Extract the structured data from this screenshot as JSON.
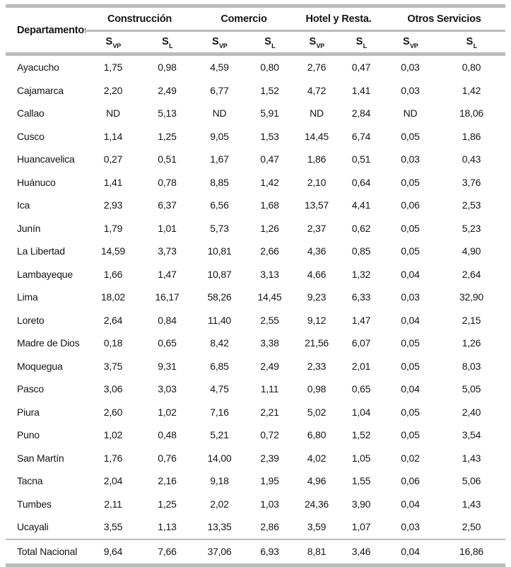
{
  "colors": {
    "rule": "#b9bbbd",
    "text": "#151515"
  },
  "table": {
    "row_header": "Departamentos",
    "groups": [
      "Construcción",
      "Comercio",
      "Hotel y Resta.",
      "Otros Servicios"
    ],
    "sub_headers": {
      "base": "S",
      "vp": "VP",
      "l": "L"
    },
    "na_value": "ND",
    "rows": [
      [
        "Ayacucho",
        "1,75",
        "0,98",
        "4,59",
        "0,80",
        "2,76",
        "0,47",
        "0,03",
        "0,80"
      ],
      [
        "Cajamarca",
        "2,20",
        "2,49",
        "6,77",
        "1,52",
        "4,72",
        "1,41",
        "0,03",
        "1,42"
      ],
      [
        "Callao",
        "ND",
        "5,13",
        "ND",
        "5,91",
        "ND",
        "2,84",
        "ND",
        "18,06"
      ],
      [
        "Cusco",
        "1,14",
        "1,25",
        "9,05",
        "1,53",
        "14,45",
        "6,74",
        "0,05",
        "1,86"
      ],
      [
        "Huancavelica",
        "0,27",
        "0,51",
        "1,67",
        "0,47",
        "1,86",
        "0,51",
        "0,03",
        "0,43"
      ],
      [
        "Huánuco",
        "1,41",
        "0,78",
        "8,85",
        "1,42",
        "2,10",
        "0,64",
        "0,05",
        "3,76"
      ],
      [
        "Ica",
        "2,93",
        "6,37",
        "6,56",
        "1,68",
        "13,57",
        "4,41",
        "0,06",
        "2,53"
      ],
      [
        "Junín",
        "1,79",
        "1,01",
        "5,73",
        "1,26",
        "2,37",
        "0,62",
        "0,05",
        "5,23"
      ],
      [
        "La Libertad",
        "14,59",
        "3,73",
        "10,81",
        "2,66",
        "4,36",
        "0,85",
        "0,05",
        "4,90"
      ],
      [
        "Lambayeque",
        "1,66",
        "1,47",
        "10,87",
        "3,13",
        "4,66",
        "1,32",
        "0,04",
        "2,64"
      ],
      [
        "Lima",
        "18,02",
        "16,17",
        "58,26",
        "14,45",
        "9,23",
        "6,33",
        "0,03",
        "32,90"
      ],
      [
        "Loreto",
        "2,64",
        "0,84",
        "11,40",
        "2,55",
        "9,12",
        "1,47",
        "0,04",
        "2,15"
      ],
      [
        "Madre de Dios",
        "0,18",
        "0,65",
        "8,42",
        "3,38",
        "21,56",
        "6,07",
        "0,05",
        "1,26"
      ],
      [
        "Moquegua",
        "3,75",
        "9,31",
        "6,85",
        "2,49",
        "2,33",
        "2,01",
        "0,05",
        "8,03"
      ],
      [
        "Pasco",
        "3,06",
        "3,03",
        "4,75",
        "1,11",
        "0,98",
        "0,65",
        "0,04",
        "5,05"
      ],
      [
        "Piura",
        "2,60",
        "1,02",
        "7,16",
        "2,21",
        "5,02",
        "1,04",
        "0,05",
        "2,40"
      ],
      [
        "Puno",
        "1,02",
        "0,48",
        "5,21",
        "0,72",
        "6,80",
        "1,52",
        "0,05",
        "3,54"
      ],
      [
        "San Martín",
        "1,76",
        "0,76",
        "14,00",
        "2,39",
        "4,02",
        "1,05",
        "0,02",
        "1,43"
      ],
      [
        "Tacna",
        "2,04",
        "2,16",
        "9,18",
        "1,95",
        "4,96",
        "1,55",
        "0,06",
        "5,06"
      ],
      [
        "Tumbes",
        "2,11",
        "1,25",
        "2,02",
        "1,03",
        "24,36",
        "3,90",
        "0,04",
        "1,43"
      ],
      [
        "Ucayali",
        "3,55",
        "1,13",
        "13,35",
        "2,86",
        "3,59",
        "1,07",
        "0,03",
        "2,50"
      ]
    ],
    "total_row": [
      "Total Nacional",
      "9,64",
      "7,66",
      "37,06",
      "6,93",
      "8,81",
      "3,46",
      "0,04",
      "16,86"
    ]
  }
}
